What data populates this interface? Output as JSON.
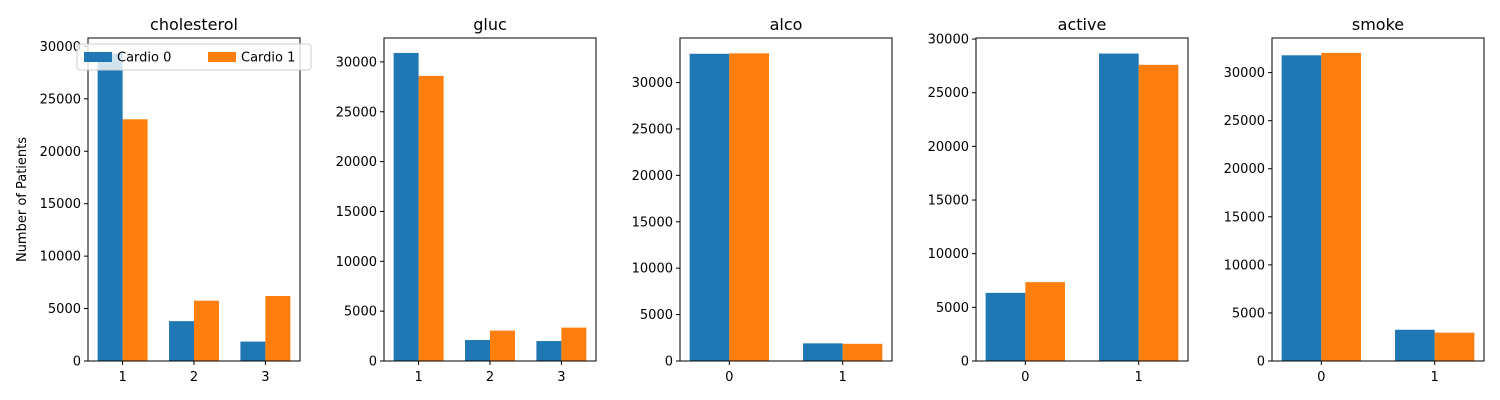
{
  "colors": {
    "series0": "#1f77b4",
    "series1": "#ff7f0e"
  },
  "legend": {
    "placement": "upper-left",
    "entries": [
      "Cardio 0",
      "Cardio 1"
    ]
  },
  "shared": {
    "ylabel": "Number of Patients"
  },
  "chart_data": [
    {
      "type": "bar",
      "title": "cholesterol",
      "categories": [
        "1",
        "2",
        "3"
      ],
      "series": [
        {
          "name": "Cardio 0",
          "values": [
            29330,
            3800,
            1850
          ]
        },
        {
          "name": "Cardio 1",
          "values": [
            23050,
            5750,
            6200
          ]
        }
      ],
      "ylim": [
        0,
        30800
      ],
      "yticks": [
        0,
        5000,
        10000,
        15000,
        20000,
        25000,
        30000
      ],
      "ylabel": "Number of Patients",
      "grid": false,
      "legend": true
    },
    {
      "type": "bar",
      "title": "gluc",
      "categories": [
        "1",
        "2",
        "3"
      ],
      "series": [
        {
          "name": "Cardio 0",
          "values": [
            30900,
            2100,
            2000
          ]
        },
        {
          "name": "Cardio 1",
          "values": [
            28600,
            3050,
            3350
          ]
        }
      ],
      "ylim": [
        0,
        32400
      ],
      "yticks": [
        0,
        5000,
        10000,
        15000,
        20000,
        25000,
        30000
      ],
      "grid": false,
      "legend": false
    },
    {
      "type": "bar",
      "title": "alco",
      "categories": [
        "0",
        "1"
      ],
      "series": [
        {
          "name": "Cardio 0",
          "values": [
            33100,
            1900
          ]
        },
        {
          "name": "Cardio 1",
          "values": [
            33150,
            1850
          ]
        }
      ],
      "ylim": [
        0,
        34800
      ],
      "yticks": [
        0,
        5000,
        10000,
        15000,
        20000,
        25000,
        30000
      ],
      "grid": false,
      "legend": false
    },
    {
      "type": "bar",
      "title": "active",
      "categories": [
        "0",
        "1"
      ],
      "series": [
        {
          "name": "Cardio 0",
          "values": [
            6350,
            28650
          ]
        },
        {
          "name": "Cardio 1",
          "values": [
            7350,
            27600
          ]
        }
      ],
      "ylim": [
        0,
        30100
      ],
      "yticks": [
        0,
        5000,
        10000,
        15000,
        20000,
        25000,
        30000
      ],
      "grid": false,
      "legend": false
    },
    {
      "type": "bar",
      "title": "smoke",
      "categories": [
        "0",
        "1"
      ],
      "series": [
        {
          "name": "Cardio 0",
          "values": [
            31800,
            3250
          ]
        },
        {
          "name": "Cardio 1",
          "values": [
            32050,
            2950
          ]
        }
      ],
      "ylim": [
        0,
        33600
      ],
      "yticks": [
        0,
        5000,
        10000,
        15000,
        20000,
        25000,
        30000
      ],
      "grid": false,
      "legend": false
    }
  ]
}
